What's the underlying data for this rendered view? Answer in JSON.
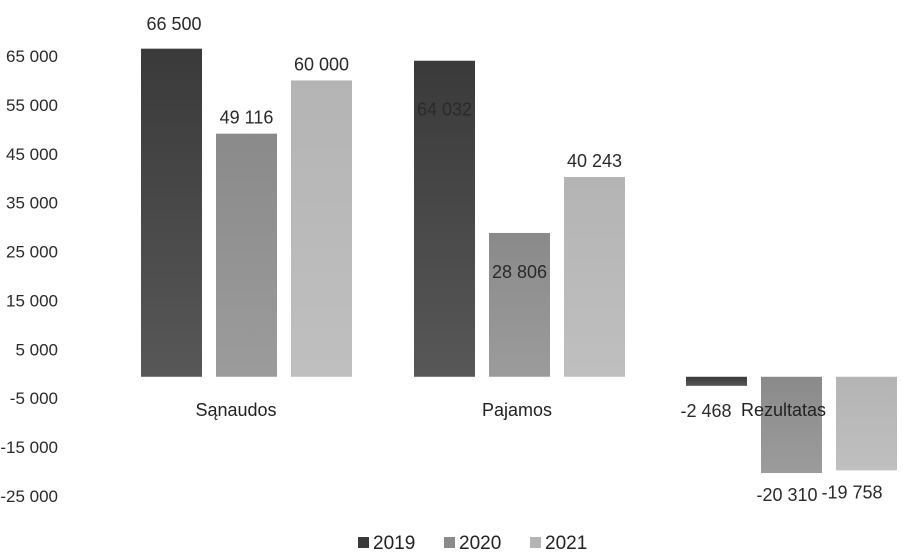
{
  "chart_data": {
    "type": "bar",
    "categories": [
      "Sąnaudos",
      "Pajamos",
      "Rezultatas"
    ],
    "series": [
      {
        "name": "2019",
        "values": [
          66500,
          64032,
          -2468
        ],
        "labels": [
          "66 500",
          "64 032",
          "-2 468"
        ],
        "color": "#3a3a3a"
      },
      {
        "name": "2020",
        "values": [
          49116,
          28806,
          -20310
        ],
        "labels": [
          "49 116",
          "28 806",
          "-20 310"
        ],
        "color": "#8a8a8a"
      },
      {
        "name": "2021",
        "values": [
          60000,
          40243,
          -19758
        ],
        "labels": [
          "60 000",
          "40 243",
          "-19 758"
        ],
        "color": "#b4b4b4"
      }
    ],
    "yticks": [
      65000,
      55000,
      45000,
      35000,
      25000,
      15000,
      5000,
      -5000,
      -15000,
      -25000
    ],
    "ytick_labels": [
      "65 000",
      "55 000",
      "45 000",
      "35 000",
      "25 000",
      "15 000",
      "5 000",
      "-5 000",
      "-15 000",
      "-25 000"
    ],
    "ylim": [
      -25000,
      65000
    ],
    "grid": false,
    "legend_position": "bottom"
  }
}
